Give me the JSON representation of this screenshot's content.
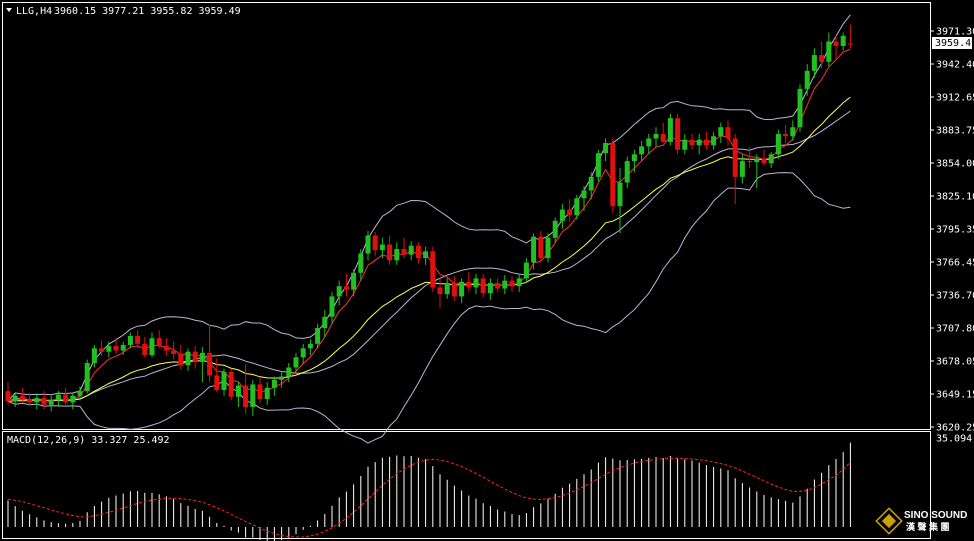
{
  "header": {
    "symbol": "LLG,H4",
    "ohlc": "3960.15 3977.21 3955.82 3959.49"
  },
  "macd_header": "MACD(12,26,9) 33.327 25.492",
  "current_price_label": "3959.49",
  "watermark": {
    "brand": "SINO SOUND",
    "sub": "漢 聲 集 團"
  },
  "colors": {
    "background": "#000000",
    "bull": "#22c022",
    "bear": "#e01010",
    "ma_fast": "#ff3030",
    "ma_slow": "#ffff60",
    "bollinger": "#b8b8d0",
    "macd_hist": "#ffffff",
    "macd_signal": "#ff2020",
    "grid_border": "#ffffff"
  },
  "chart_data": [
    {
      "type": "candlestick",
      "title": "LLG,H4",
      "y_ticks": [
        "3971.30",
        "3942.40",
        "3912.65",
        "3883.75",
        "3854.00",
        "3825.10",
        "3795.35",
        "3766.45",
        "3736.70",
        "3707.80",
        "3678.05",
        "3649.15",
        "3620.25"
      ],
      "ylim": [
        3620.25,
        3985.0
      ],
      "candles": [
        [
          3652,
          3660,
          3640,
          3643
        ],
        [
          3643,
          3650,
          3638,
          3648
        ],
        [
          3648,
          3655,
          3642,
          3645
        ],
        [
          3645,
          3650,
          3639,
          3642
        ],
        [
          3642,
          3650,
          3636,
          3646
        ],
        [
          3646,
          3652,
          3636,
          3640
        ],
        [
          3640,
          3648,
          3634,
          3644
        ],
        [
          3644,
          3652,
          3638,
          3649
        ],
        [
          3649,
          3655,
          3640,
          3642
        ],
        [
          3642,
          3650,
          3636,
          3648
        ],
        [
          3648,
          3656,
          3644,
          3652
        ],
        [
          3652,
          3680,
          3650,
          3677
        ],
        [
          3677,
          3693,
          3673,
          3690
        ],
        [
          3690,
          3697,
          3683,
          3687
        ],
        [
          3687,
          3696,
          3682,
          3692
        ],
        [
          3692,
          3699,
          3685,
          3688
        ],
        [
          3688,
          3696,
          3684,
          3693
        ],
        [
          3693,
          3704,
          3690,
          3701
        ],
        [
          3701,
          3706,
          3690,
          3694
        ],
        [
          3694,
          3700,
          3682,
          3684
        ],
        [
          3684,
          3704,
          3682,
          3699
        ],
        [
          3699,
          3706,
          3690,
          3692
        ],
        [
          3692,
          3699,
          3684,
          3688
        ],
        [
          3688,
          3696,
          3680,
          3685
        ],
        [
          3685,
          3693,
          3671,
          3675
        ],
        [
          3675,
          3690,
          3670,
          3687
        ],
        [
          3687,
          3692,
          3672,
          3678
        ],
        [
          3678,
          3691,
          3660,
          3686
        ],
        [
          3686,
          3711,
          3660,
          3666
        ],
        [
          3666,
          3681,
          3651,
          3653
        ],
        [
          3653,
          3672,
          3648,
          3669
        ],
        [
          3669,
          3672,
          3644,
          3647
        ],
        [
          3647,
          3660,
          3638,
          3657
        ],
        [
          3657,
          3676,
          3632,
          3638
        ],
        [
          3638,
          3662,
          3630,
          3658
        ],
        [
          3658,
          3664,
          3641,
          3645
        ],
        [
          3645,
          3660,
          3640,
          3655
        ],
        [
          3655,
          3665,
          3648,
          3662
        ],
        [
          3662,
          3670,
          3655,
          3665
        ],
        [
          3665,
          3677,
          3660,
          3673
        ],
        [
          3673,
          3686,
          3668,
          3682
        ],
        [
          3682,
          3694,
          3676,
          3690
        ],
        [
          3690,
          3698,
          3684,
          3694
        ],
        [
          3694,
          3712,
          3690,
          3708
        ],
        [
          3708,
          3724,
          3700,
          3718
        ],
        [
          3718,
          3740,
          3712,
          3736
        ],
        [
          3736,
          3750,
          3728,
          3745
        ],
        [
          3745,
          3756,
          3736,
          3742
        ],
        [
          3742,
          3760,
          3736,
          3757
        ],
        [
          3757,
          3778,
          3750,
          3774
        ],
        [
          3774,
          3794,
          3768,
          3790
        ],
        [
          3790,
          3793,
          3772,
          3777
        ],
        [
          3777,
          3788,
          3770,
          3782
        ],
        [
          3782,
          3790,
          3764,
          3768
        ],
        [
          3768,
          3784,
          3764,
          3778
        ],
        [
          3778,
          3788,
          3770,
          3773
        ],
        [
          3773,
          3785,
          3768,
          3781
        ],
        [
          3781,
          3784,
          3765,
          3770
        ],
        [
          3770,
          3780,
          3764,
          3776
        ],
        [
          3776,
          3780,
          3740,
          3744
        ],
        [
          3744,
          3752,
          3726,
          3738
        ],
        [
          3738,
          3752,
          3734,
          3748
        ],
        [
          3748,
          3754,
          3732,
          3736
        ],
        [
          3736,
          3752,
          3730,
          3749
        ],
        [
          3749,
          3758,
          3740,
          3744
        ],
        [
          3744,
          3756,
          3738,
          3752
        ],
        [
          3752,
          3756,
          3735,
          3739
        ],
        [
          3739,
          3752,
          3733,
          3748
        ],
        [
          3748,
          3752,
          3740,
          3743
        ],
        [
          3743,
          3755,
          3738,
          3750
        ],
        [
          3750,
          3754,
          3740,
          3745
        ],
        [
          3745,
          3756,
          3740,
          3752
        ],
        [
          3752,
          3770,
          3748,
          3766
        ],
        [
          3766,
          3792,
          3760,
          3789
        ],
        [
          3789,
          3794,
          3766,
          3770
        ],
        [
          3770,
          3792,
          3766,
          3788
        ],
        [
          3788,
          3806,
          3784,
          3803
        ],
        [
          3803,
          3818,
          3796,
          3813
        ],
        [
          3813,
          3822,
          3802,
          3808
        ],
        [
          3808,
          3826,
          3804,
          3823
        ],
        [
          3823,
          3834,
          3812,
          3830
        ],
        [
          3830,
          3846,
          3822,
          3842
        ],
        [
          3842,
          3866,
          3838,
          3863
        ],
        [
          3863,
          3876,
          3856,
          3872
        ],
        [
          3872,
          3876,
          3810,
          3816
        ],
        [
          3816,
          3850,
          3792,
          3837
        ],
        [
          3837,
          3860,
          3832,
          3856
        ],
        [
          3856,
          3866,
          3846,
          3862
        ],
        [
          3862,
          3874,
          3856,
          3869
        ],
        [
          3869,
          3880,
          3862,
          3876
        ],
        [
          3876,
          3886,
          3868,
          3880
        ],
        [
          3880,
          3890,
          3872,
          3873
        ],
        [
          3873,
          3898,
          3870,
          3894
        ],
        [
          3894,
          3898,
          3862,
          3866
        ],
        [
          3866,
          3880,
          3862,
          3875
        ],
        [
          3875,
          3880,
          3866,
          3870
        ],
        [
          3870,
          3880,
          3862,
          3875
        ],
        [
          3875,
          3882,
          3866,
          3870
        ],
        [
          3870,
          3882,
          3866,
          3878
        ],
        [
          3878,
          3890,
          3872,
          3886
        ],
        [
          3886,
          3892,
          3870,
          3876
        ],
        [
          3876,
          3880,
          3818,
          3842
        ],
        [
          3842,
          3862,
          3836,
          3856
        ],
        [
          3856,
          3868,
          3850,
          3855
        ],
        [
          3855,
          3862,
          3832,
          3858
        ],
        [
          3858,
          3866,
          3852,
          3854
        ],
        [
          3854,
          3864,
          3850,
          3862
        ],
        [
          3862,
          3884,
          3858,
          3880
        ],
        [
          3880,
          3888,
          3872,
          3878
        ],
        [
          3878,
          3892,
          3874,
          3886
        ],
        [
          3886,
          3924,
          3882,
          3920
        ],
        [
          3920,
          3942,
          3914,
          3936
        ],
        [
          3936,
          3956,
          3930,
          3950
        ],
        [
          3950,
          3962,
          3938,
          3944
        ],
        [
          3944,
          3970,
          3940,
          3962
        ],
        [
          3962,
          3967,
          3946,
          3958
        ],
        [
          3958,
          3970,
          3954,
          3967
        ],
        [
          3960.15,
          3977.21,
          3955.82,
          3959.49
        ]
      ]
    },
    {
      "type": "bar+line",
      "title": "MACD(12,26,9) 33.327 25.492",
      "y_ticks": [
        "35.094"
      ],
      "ylim": [
        -10.5,
        35.094
      ],
      "series": [
        {
          "values": [
            10.5,
            8.2,
            6.4,
            5.0,
            3.8,
            2.6,
            1.9,
            1.5,
            1.3,
            1.6,
            2.4,
            5.8,
            8.3,
            10.0,
            11.5,
            12.4,
            13.2,
            14.1,
            14.2,
            13.5,
            13.4,
            12.9,
            12.1,
            11.1,
            9.4,
            8.4,
            7.1,
            6.4,
            4.0,
            1.6,
            0.5,
            -1.4,
            -2.2,
            -4.1,
            -4.2,
            -5.2,
            -5.6,
            -5.6,
            -5.2,
            -4.3,
            -2.8,
            -1.1,
            0.5,
            2.6,
            5.1,
            8.4,
            11.7,
            14.0,
            16.8,
            20.1,
            23.8,
            25.6,
            27.3,
            27.7,
            28.2,
            27.9,
            28.0,
            27.3,
            26.7,
            24.0,
            20.8,
            18.6,
            16.3,
            14.4,
            12.4,
            11.2,
            9.4,
            8.3,
            6.9,
            6.1,
            5.1,
            4.7,
            5.5,
            7.8,
            9.3,
            11.2,
            13.1,
            15.5,
            17.1,
            19.0,
            20.8,
            22.7,
            25.4,
            27.5,
            27.0,
            26.3,
            26.4,
            26.7,
            26.8,
            27.3,
            27.6,
            27.2,
            28.0,
            27.3,
            26.7,
            26.2,
            25.4,
            24.4,
            23.7,
            23.1,
            22.4,
            19.2,
            17.3,
            15.6,
            14.0,
            12.6,
            11.7,
            11.0,
            10.3,
            9.6,
            12.1,
            15.1,
            18.7,
            21.4,
            24.4,
            26.8,
            29.5,
            33.3
          ]
        },
        {
          "values": [
            11.0,
            10.5,
            10.0,
            9.2,
            8.4,
            7.6,
            6.7,
            5.9,
            5.2,
            4.5,
            4.0,
            4.0,
            4.4,
            5.0,
            5.8,
            6.6,
            7.5,
            8.4,
            9.3,
            10.0,
            10.6,
            11.0,
            11.2,
            11.4,
            11.2,
            10.9,
            10.4,
            9.8,
            8.8,
            7.6,
            6.4,
            5.0,
            3.6,
            2.2,
            0.9,
            -0.5,
            -1.6,
            -2.6,
            -3.3,
            -3.8,
            -4.0,
            -3.9,
            -3.5,
            -2.8,
            -1.7,
            -0.3,
            1.5,
            3.5,
            5.8,
            8.4,
            11.1,
            13.8,
            16.4,
            18.8,
            21.0,
            22.8,
            24.4,
            25.6,
            26.3,
            26.7,
            26.4,
            25.8,
            24.9,
            23.8,
            22.5,
            21.1,
            19.6,
            18.0,
            16.5,
            15.0,
            13.6,
            12.4,
            11.5,
            11.0,
            10.9,
            11.1,
            11.6,
            12.4,
            13.4,
            14.6,
            16.0,
            17.5,
            19.1,
            20.8,
            22.2,
            23.4,
            24.4,
            25.2,
            25.8,
            26.3,
            26.7,
            26.9,
            27.1,
            27.1,
            27.0,
            26.8,
            26.5,
            26.1,
            25.6,
            25.0,
            24.3,
            23.3,
            22.1,
            20.8,
            19.5,
            18.2,
            16.9,
            15.8,
            14.8,
            14.0,
            14.0,
            14.5,
            15.5,
            16.9,
            18.6,
            20.4,
            22.7,
            25.5
          ]
        }
      ]
    }
  ]
}
